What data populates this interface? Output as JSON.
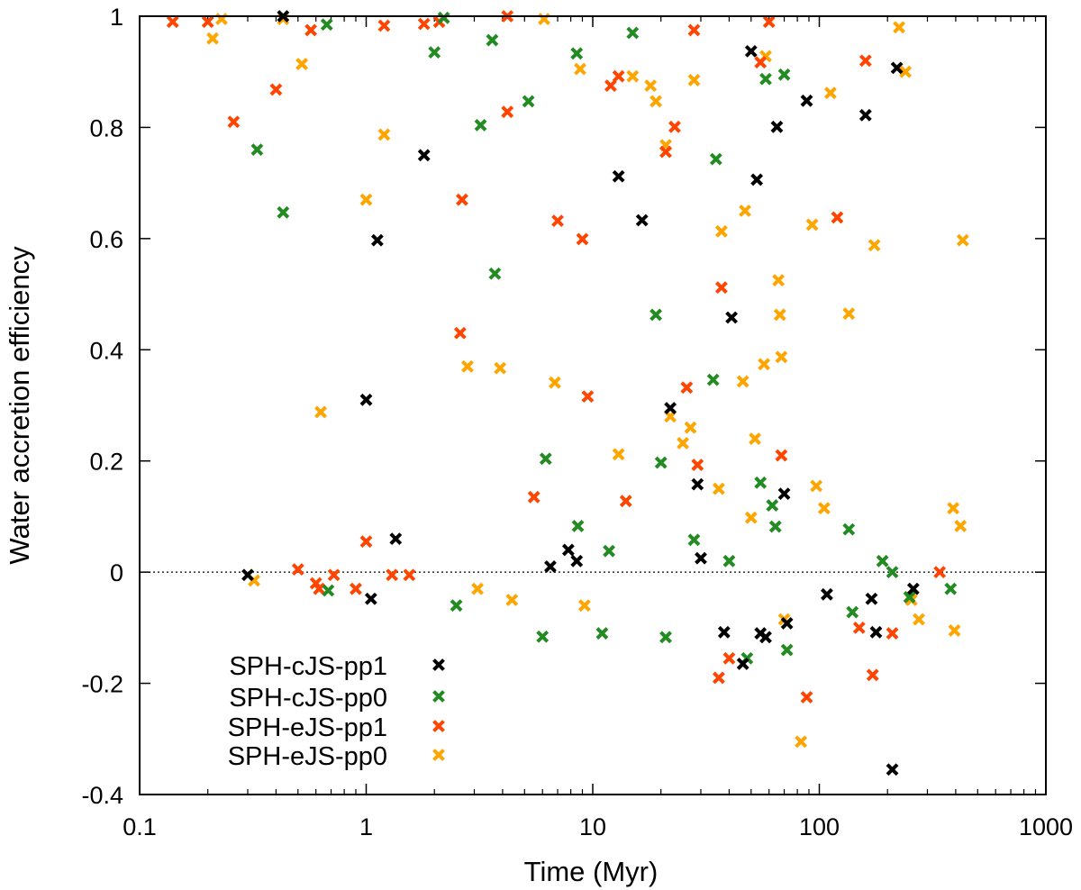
{
  "chart_data": {
    "type": "scatter",
    "title": "",
    "xlabel": "Time (Myr)",
    "ylabel": "Water accretion efficiency",
    "xscale": "log",
    "xlim": [
      0.1,
      1000
    ],
    "ylim": [
      -0.4,
      1.0
    ],
    "xticks": [
      0.1,
      1,
      10,
      100,
      1000
    ],
    "xtick_labels": [
      "0.1",
      "1",
      "10",
      "100",
      "1000"
    ],
    "yticks": [
      -0.4,
      -0.2,
      0,
      0.2,
      0.4,
      0.6,
      0.8,
      1
    ],
    "ytick_labels": [
      "-0.4",
      "-0.2",
      "0",
      "0.2",
      "0.4",
      "0.6",
      "0.8",
      "1"
    ],
    "reference_line": {
      "y": 0,
      "style": "dotted"
    },
    "legend_position": "bottom-left",
    "series": [
      {
        "name": "SPH-cJS-pp1",
        "color": "#000000",
        "x": [
          0.3,
          0.43,
          1.0,
          1.05,
          1.12,
          1.35,
          1.8,
          6.5,
          7.8,
          8.5,
          13,
          16.5,
          22,
          29,
          30,
          38,
          41,
          46,
          50,
          53,
          55,
          58,
          65,
          70,
          72,
          88,
          108,
          160,
          170,
          178,
          210,
          220,
          260
        ],
        "y": [
          -0.005,
          1.0,
          0.31,
          -0.048,
          0.597,
          0.06,
          0.75,
          0.01,
          0.04,
          0.02,
          0.712,
          0.633,
          0.295,
          0.158,
          0.025,
          -0.108,
          0.458,
          -0.165,
          0.937,
          0.706,
          -0.11,
          -0.117,
          0.801,
          0.141,
          -0.092,
          0.848,
          -0.04,
          0.822,
          -0.048,
          -0.108,
          -0.355,
          0.907,
          -0.03
        ]
      },
      {
        "name": "SPH-cJS-pp0",
        "color": "#228b22",
        "x": [
          0.33,
          0.43,
          0.67,
          0.68,
          2.0,
          2.2,
          2.5,
          3.2,
          3.6,
          3.7,
          5.2,
          6.0,
          6.2,
          8.5,
          8.6,
          11.0,
          11.8,
          15.0,
          19.0,
          20.0,
          21.0,
          28.0,
          34.0,
          35.0,
          40.0,
          48.0,
          55.0,
          58.0,
          62.0,
          64.0,
          70.0,
          72.0,
          135.0,
          140.0,
          190.0,
          210.0,
          250.0,
          380.0
        ],
        "y": [
          0.76,
          0.647,
          0.985,
          -0.033,
          0.935,
          0.997,
          -0.06,
          0.804,
          0.957,
          0.537,
          0.847,
          -0.116,
          0.204,
          0.933,
          0.083,
          -0.11,
          0.038,
          0.97,
          0.463,
          0.197,
          -0.117,
          0.058,
          0.346,
          0.743,
          0.02,
          -0.155,
          0.161,
          0.887,
          0.12,
          0.082,
          0.895,
          -0.14,
          0.077,
          -0.072,
          0.02,
          0.0,
          -0.045,
          -0.03
        ]
      },
      {
        "name": "SPH-eJS-pp1",
        "color": "#ff4500",
        "x": [
          0.14,
          0.2,
          0.26,
          0.4,
          0.5,
          0.57,
          0.6,
          0.62,
          0.72,
          0.9,
          1.0,
          1.2,
          1.3,
          1.55,
          1.8,
          2.1,
          2.6,
          2.65,
          4.2,
          4.2,
          5.5,
          7.0,
          9.0,
          9.5,
          12.0,
          13.0,
          14.0,
          21.0,
          23.0,
          26.0,
          28.0,
          29.0,
          36.0,
          37.0,
          40.0,
          55.0,
          60.0,
          68.0,
          88.0,
          120.0,
          150.0,
          160.0,
          172.0,
          210.0,
          340.0
        ],
        "y": [
          0.99,
          0.99,
          0.81,
          0.868,
          0.005,
          0.975,
          -0.02,
          -0.03,
          -0.005,
          -0.03,
          0.055,
          0.983,
          -0.005,
          -0.005,
          0.986,
          0.99,
          0.43,
          0.67,
          0.828,
          1.0,
          0.135,
          0.632,
          0.599,
          0.316,
          0.875,
          0.892,
          0.128,
          0.756,
          0.801,
          0.332,
          0.975,
          0.193,
          -0.19,
          0.512,
          -0.155,
          0.917,
          0.99,
          0.21,
          -0.225,
          0.638,
          -0.1,
          0.92,
          -0.185,
          -0.11,
          0.0
        ]
      },
      {
        "name": "SPH-eJS-pp0",
        "color": "#ffa500",
        "x": [
          0.21,
          0.23,
          0.32,
          0.43,
          0.52,
          0.63,
          1.0,
          1.2,
          2.8,
          3.1,
          3.9,
          4.4,
          6.1,
          6.8,
          8.8,
          9.2,
          13.0,
          15.0,
          18.0,
          19.0,
          21.0,
          22.0,
          25.0,
          27.0,
          28.0,
          36.0,
          37.0,
          46.0,
          47.0,
          50.0,
          52.0,
          57.0,
          58.0,
          66.0,
          67.0,
          68.0,
          70.0,
          83.0,
          93.0,
          97.0,
          105.0,
          112.0,
          135.0,
          175.0,
          225.0,
          240.0,
          255.0,
          275.0,
          390.0,
          395.0,
          420.0,
          430.0
        ],
        "y": [
          0.96,
          0.995,
          -0.015,
          0.995,
          0.914,
          0.288,
          0.67,
          0.787,
          0.37,
          -0.03,
          0.367,
          -0.05,
          0.995,
          0.341,
          0.905,
          -0.06,
          0.212,
          0.892,
          0.875,
          0.847,
          0.768,
          0.28,
          0.232,
          0.26,
          0.885,
          0.15,
          0.613,
          0.343,
          0.65,
          0.098,
          0.24,
          0.374,
          0.928,
          0.525,
          0.463,
          0.387,
          -0.085,
          -0.305,
          0.625,
          0.155,
          0.115,
          0.862,
          0.465,
          0.588,
          0.98,
          0.9,
          -0.05,
          -0.085,
          0.115,
          -0.105,
          0.083,
          0.597
        ]
      }
    ]
  }
}
